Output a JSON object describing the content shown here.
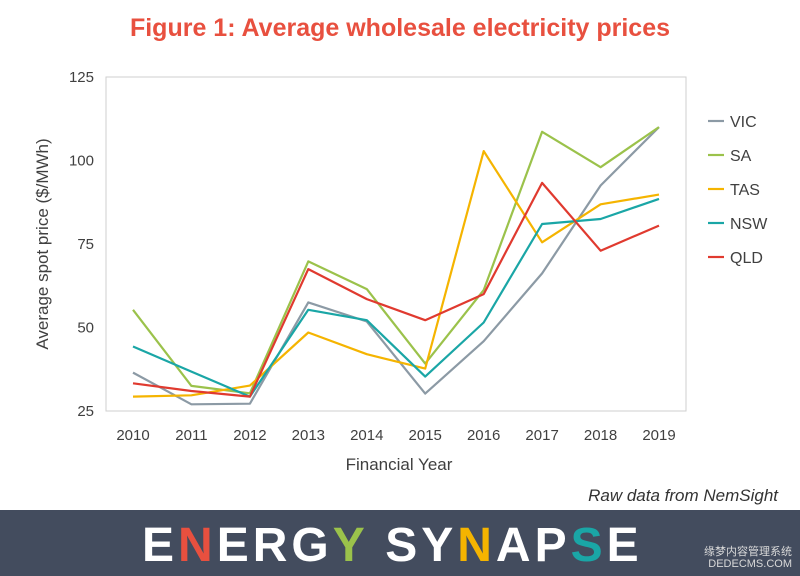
{
  "chart_data": {
    "type": "line",
    "title": "Figure 1: Average wholesale electricity prices",
    "xlabel": "Financial Year",
    "ylabel": "Average spot price ($/MWh)",
    "categories": [
      "2010",
      "2011",
      "2012",
      "2013",
      "2014",
      "2015",
      "2016",
      "2017",
      "2018",
      "2019"
    ],
    "ylim": [
      25,
      125
    ],
    "yticks": [
      25,
      50,
      75,
      100,
      125
    ],
    "grid": false,
    "legend_position": "right",
    "series": [
      {
        "name": "VIC",
        "color": "#8c9aa5",
        "values": [
          36.5,
          27.0,
          27.2,
          57.5,
          51.8,
          30.2,
          45.9,
          66.2,
          92.5,
          110.0
        ]
      },
      {
        "name": "SA",
        "color": "#9bc24b",
        "values": [
          55.3,
          32.5,
          30.3,
          69.8,
          61.5,
          39.2,
          61.2,
          108.6,
          98.0,
          110.0
        ]
      },
      {
        "name": "TAS",
        "color": "#f5b400",
        "values": [
          29.3,
          29.7,
          32.6,
          48.5,
          42.0,
          37.7,
          102.8,
          75.5,
          86.9,
          89.8
        ]
      },
      {
        "name": "NSW",
        "color": "#1aa6a6",
        "values": [
          44.3,
          36.8,
          29.3,
          55.3,
          52.2,
          35.3,
          51.5,
          81.0,
          82.5,
          88.5
        ]
      },
      {
        "name": "QLD",
        "color": "#e03a2f",
        "values": [
          33.3,
          31.0,
          29.3,
          67.5,
          58.5,
          52.2,
          60.0,
          93.3,
          73.0,
          80.5
        ]
      }
    ]
  },
  "source_note": "Raw data from NemSight",
  "brand": {
    "name": "ENERGY SYNAPSE"
  },
  "watermark": {
    "line1": "缘梦内容管理系统",
    "line2": "DEDECMS.COM"
  }
}
